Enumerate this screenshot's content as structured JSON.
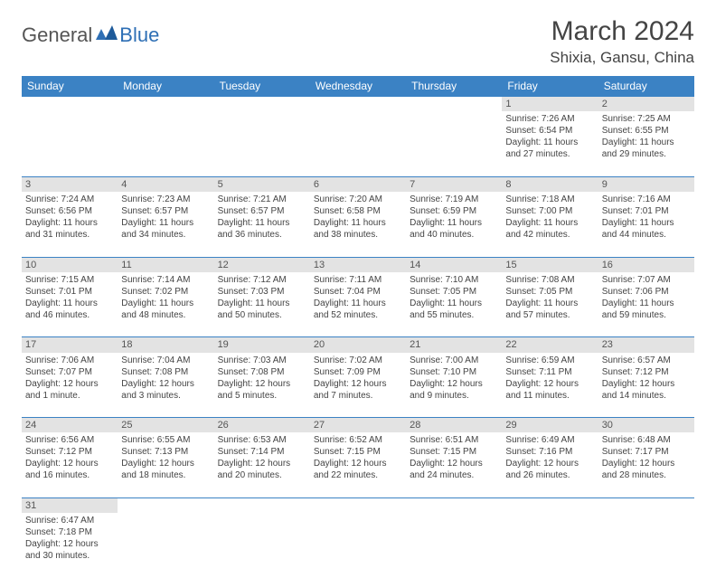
{
  "logo": {
    "part1": "General",
    "part2": "Blue"
  },
  "title": "March 2024",
  "location": "Shixia, Gansu, China",
  "colors": {
    "header_bg": "#3b82c4",
    "daynum_bg": "#e3e3e3",
    "accent": "#2e6fb5"
  },
  "weekdays": [
    "Sunday",
    "Monday",
    "Tuesday",
    "Wednesday",
    "Thursday",
    "Friday",
    "Saturday"
  ],
  "weeks": [
    {
      "nums": [
        "",
        "",
        "",
        "",
        "",
        "1",
        "2"
      ],
      "cells": [
        null,
        null,
        null,
        null,
        null,
        {
          "sr": "Sunrise: 7:26 AM",
          "ss": "Sunset: 6:54 PM",
          "dl1": "Daylight: 11 hours",
          "dl2": "and 27 minutes."
        },
        {
          "sr": "Sunrise: 7:25 AM",
          "ss": "Sunset: 6:55 PM",
          "dl1": "Daylight: 11 hours",
          "dl2": "and 29 minutes."
        }
      ]
    },
    {
      "nums": [
        "3",
        "4",
        "5",
        "6",
        "7",
        "8",
        "9"
      ],
      "cells": [
        {
          "sr": "Sunrise: 7:24 AM",
          "ss": "Sunset: 6:56 PM",
          "dl1": "Daylight: 11 hours",
          "dl2": "and 31 minutes."
        },
        {
          "sr": "Sunrise: 7:23 AM",
          "ss": "Sunset: 6:57 PM",
          "dl1": "Daylight: 11 hours",
          "dl2": "and 34 minutes."
        },
        {
          "sr": "Sunrise: 7:21 AM",
          "ss": "Sunset: 6:57 PM",
          "dl1": "Daylight: 11 hours",
          "dl2": "and 36 minutes."
        },
        {
          "sr": "Sunrise: 7:20 AM",
          "ss": "Sunset: 6:58 PM",
          "dl1": "Daylight: 11 hours",
          "dl2": "and 38 minutes."
        },
        {
          "sr": "Sunrise: 7:19 AM",
          "ss": "Sunset: 6:59 PM",
          "dl1": "Daylight: 11 hours",
          "dl2": "and 40 minutes."
        },
        {
          "sr": "Sunrise: 7:18 AM",
          "ss": "Sunset: 7:00 PM",
          "dl1": "Daylight: 11 hours",
          "dl2": "and 42 minutes."
        },
        {
          "sr": "Sunrise: 7:16 AM",
          "ss": "Sunset: 7:01 PM",
          "dl1": "Daylight: 11 hours",
          "dl2": "and 44 minutes."
        }
      ]
    },
    {
      "nums": [
        "10",
        "11",
        "12",
        "13",
        "14",
        "15",
        "16"
      ],
      "cells": [
        {
          "sr": "Sunrise: 7:15 AM",
          "ss": "Sunset: 7:01 PM",
          "dl1": "Daylight: 11 hours",
          "dl2": "and 46 minutes."
        },
        {
          "sr": "Sunrise: 7:14 AM",
          "ss": "Sunset: 7:02 PM",
          "dl1": "Daylight: 11 hours",
          "dl2": "and 48 minutes."
        },
        {
          "sr": "Sunrise: 7:12 AM",
          "ss": "Sunset: 7:03 PM",
          "dl1": "Daylight: 11 hours",
          "dl2": "and 50 minutes."
        },
        {
          "sr": "Sunrise: 7:11 AM",
          "ss": "Sunset: 7:04 PM",
          "dl1": "Daylight: 11 hours",
          "dl2": "and 52 minutes."
        },
        {
          "sr": "Sunrise: 7:10 AM",
          "ss": "Sunset: 7:05 PM",
          "dl1": "Daylight: 11 hours",
          "dl2": "and 55 minutes."
        },
        {
          "sr": "Sunrise: 7:08 AM",
          "ss": "Sunset: 7:05 PM",
          "dl1": "Daylight: 11 hours",
          "dl2": "and 57 minutes."
        },
        {
          "sr": "Sunrise: 7:07 AM",
          "ss": "Sunset: 7:06 PM",
          "dl1": "Daylight: 11 hours",
          "dl2": "and 59 minutes."
        }
      ]
    },
    {
      "nums": [
        "17",
        "18",
        "19",
        "20",
        "21",
        "22",
        "23"
      ],
      "cells": [
        {
          "sr": "Sunrise: 7:06 AM",
          "ss": "Sunset: 7:07 PM",
          "dl1": "Daylight: 12 hours",
          "dl2": "and 1 minute."
        },
        {
          "sr": "Sunrise: 7:04 AM",
          "ss": "Sunset: 7:08 PM",
          "dl1": "Daylight: 12 hours",
          "dl2": "and 3 minutes."
        },
        {
          "sr": "Sunrise: 7:03 AM",
          "ss": "Sunset: 7:08 PM",
          "dl1": "Daylight: 12 hours",
          "dl2": "and 5 minutes."
        },
        {
          "sr": "Sunrise: 7:02 AM",
          "ss": "Sunset: 7:09 PM",
          "dl1": "Daylight: 12 hours",
          "dl2": "and 7 minutes."
        },
        {
          "sr": "Sunrise: 7:00 AM",
          "ss": "Sunset: 7:10 PM",
          "dl1": "Daylight: 12 hours",
          "dl2": "and 9 minutes."
        },
        {
          "sr": "Sunrise: 6:59 AM",
          "ss": "Sunset: 7:11 PM",
          "dl1": "Daylight: 12 hours",
          "dl2": "and 11 minutes."
        },
        {
          "sr": "Sunrise: 6:57 AM",
          "ss": "Sunset: 7:12 PM",
          "dl1": "Daylight: 12 hours",
          "dl2": "and 14 minutes."
        }
      ]
    },
    {
      "nums": [
        "24",
        "25",
        "26",
        "27",
        "28",
        "29",
        "30"
      ],
      "cells": [
        {
          "sr": "Sunrise: 6:56 AM",
          "ss": "Sunset: 7:12 PM",
          "dl1": "Daylight: 12 hours",
          "dl2": "and 16 minutes."
        },
        {
          "sr": "Sunrise: 6:55 AM",
          "ss": "Sunset: 7:13 PM",
          "dl1": "Daylight: 12 hours",
          "dl2": "and 18 minutes."
        },
        {
          "sr": "Sunrise: 6:53 AM",
          "ss": "Sunset: 7:14 PM",
          "dl1": "Daylight: 12 hours",
          "dl2": "and 20 minutes."
        },
        {
          "sr": "Sunrise: 6:52 AM",
          "ss": "Sunset: 7:15 PM",
          "dl1": "Daylight: 12 hours",
          "dl2": "and 22 minutes."
        },
        {
          "sr": "Sunrise: 6:51 AM",
          "ss": "Sunset: 7:15 PM",
          "dl1": "Daylight: 12 hours",
          "dl2": "and 24 minutes."
        },
        {
          "sr": "Sunrise: 6:49 AM",
          "ss": "Sunset: 7:16 PM",
          "dl1": "Daylight: 12 hours",
          "dl2": "and 26 minutes."
        },
        {
          "sr": "Sunrise: 6:48 AM",
          "ss": "Sunset: 7:17 PM",
          "dl1": "Daylight: 12 hours",
          "dl2": "and 28 minutes."
        }
      ]
    },
    {
      "nums": [
        "31",
        "",
        "",
        "",
        "",
        "",
        ""
      ],
      "cells": [
        {
          "sr": "Sunrise: 6:47 AM",
          "ss": "Sunset: 7:18 PM",
          "dl1": "Daylight: 12 hours",
          "dl2": "and 30 minutes."
        },
        null,
        null,
        null,
        null,
        null,
        null
      ]
    }
  ]
}
